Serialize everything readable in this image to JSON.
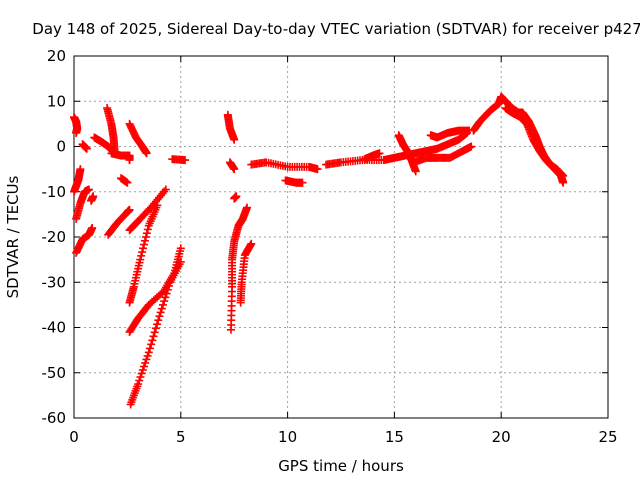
{
  "chart_data": {
    "type": "scatter",
    "title": "Day 148 of 2025, Sidereal Day-to-day VTEC variation (SDTVAR) for receiver p427",
    "xlabel": "GPS time / hours",
    "ylabel": "SDTVAR / TECUs",
    "xlim": [
      0,
      25
    ],
    "ylim": [
      -60,
      20
    ],
    "xticks": [
      "0",
      "5",
      "10",
      "15",
      "20",
      "25"
    ],
    "yticks": [
      "20",
      "10",
      "0",
      "-10",
      "-20",
      "-30",
      "-40",
      "-50",
      "-60"
    ],
    "grid": true,
    "marker": "+",
    "series": [
      {
        "name": "SDTVAR",
        "color": "#ff0000",
        "segments": [
          [
            [
              0.0,
              6.5
            ],
            [
              0.1,
              5.5
            ],
            [
              0.15,
              4.0
            ],
            [
              0.1,
              3.0
            ]
          ],
          [
            [
              0.0,
              -10.0
            ],
            [
              0.2,
              -7.5
            ],
            [
              0.3,
              -5.0
            ]
          ],
          [
            [
              0.1,
              -16.0
            ],
            [
              0.3,
              -12.5
            ],
            [
              0.5,
              -10.0
            ],
            [
              0.7,
              -9.5
            ]
          ],
          [
            [
              0.1,
              -23.5
            ],
            [
              0.4,
              -20.5
            ],
            [
              0.7,
              -19.5
            ],
            [
              0.85,
              -18.0
            ]
          ],
          [
            [
              0.4,
              0.5
            ],
            [
              0.6,
              -0.5
            ]
          ],
          [
            [
              0.8,
              -12.0
            ],
            [
              0.9,
              -11.0
            ]
          ],
          [
            [
              0.95,
              2.0
            ],
            [
              1.3,
              1.0
            ],
            [
              1.6,
              0.0
            ],
            [
              1.8,
              -1.0
            ]
          ],
          [
            [
              1.55,
              8.5
            ],
            [
              1.75,
              5.0
            ],
            [
              1.85,
              2.0
            ],
            [
              1.9,
              -1.0
            ]
          ],
          [
            [
              1.75,
              -1.5
            ],
            [
              2.2,
              -2.0
            ],
            [
              2.6,
              -2.0
            ],
            [
              2.6,
              -3.0
            ]
          ],
          [
            [
              1.6,
              -19.5
            ],
            [
              2.0,
              -17.0
            ],
            [
              2.5,
              -14.5
            ],
            [
              2.6,
              -14.0
            ]
          ],
          [
            [
              2.2,
              -7.0
            ],
            [
              2.5,
              -8.0
            ]
          ],
          [
            [
              2.6,
              5.0
            ],
            [
              2.9,
              2.0
            ],
            [
              3.2,
              0.0
            ],
            [
              3.4,
              -1.5
            ]
          ],
          [
            [
              2.6,
              -18.5
            ],
            [
              3.0,
              -16.5
            ],
            [
              3.6,
              -13.5
            ],
            [
              4.3,
              -9.5
            ]
          ],
          [
            [
              2.6,
              -34.5
            ],
            [
              2.8,
              -31.0
            ],
            [
              3.1,
              -25.0
            ],
            [
              3.5,
              -17.5
            ],
            [
              3.9,
              -13.0
            ]
          ],
          [
            [
              2.6,
              -41.0
            ],
            [
              3.0,
              -38.0
            ],
            [
              3.5,
              -35.0
            ],
            [
              4.2,
              -32.0
            ],
            [
              4.7,
              -28.0
            ],
            [
              5.0,
              -22.5
            ]
          ],
          [
            [
              2.65,
              -57.0
            ],
            [
              3.0,
              -52.5
            ],
            [
              3.5,
              -45.5
            ],
            [
              4.0,
              -37.5
            ],
            [
              4.5,
              -30.0
            ],
            [
              5.0,
              -25.5
            ]
          ],
          [
            [
              4.6,
              -2.8
            ],
            [
              5.2,
              -3.0
            ]
          ],
          [
            [
              7.2,
              7.0
            ],
            [
              7.3,
              4.0
            ],
            [
              7.5,
              1.5
            ]
          ],
          [
            [
              7.3,
              -3.5
            ],
            [
              7.5,
              -5.0
            ]
          ],
          [
            [
              7.35,
              -40.5
            ],
            [
              7.4,
              -31.0
            ],
            [
              7.4,
              -25.0
            ],
            [
              7.5,
              -21.0
            ],
            [
              7.7,
              -17.5
            ],
            [
              7.9,
              -16.0
            ],
            [
              8.1,
              -13.5
            ]
          ],
          [
            [
              7.5,
              -11.5
            ],
            [
              7.6,
              -11.0
            ]
          ],
          [
            [
              7.8,
              -34.5
            ],
            [
              7.85,
              -30.0
            ],
            [
              8.0,
              -24.0
            ],
            [
              8.3,
              -21.5
            ]
          ],
          [
            [
              8.3,
              -4.0
            ],
            [
              9.0,
              -3.5
            ],
            [
              10.0,
              -4.5
            ],
            [
              11.0,
              -4.5
            ],
            [
              11.4,
              -5.0
            ]
          ],
          [
            [
              9.9,
              -7.5
            ],
            [
              10.4,
              -8.0
            ],
            [
              10.7,
              -8.0
            ]
          ],
          [
            [
              11.8,
              -4.0
            ],
            [
              12.5,
              -3.5
            ],
            [
              13.5,
              -3.0
            ],
            [
              14.5,
              -3.0
            ],
            [
              15.0,
              -2.5
            ],
            [
              15.5,
              -2.0
            ],
            [
              16.0,
              -1.5
            ],
            [
              16.5,
              -1.0
            ],
            [
              17.0,
              -0.5
            ],
            [
              17.5,
              0.5
            ],
            [
              18.0,
              1.5
            ],
            [
              18.4,
              3.0
            ]
          ],
          [
            [
              13.6,
              -2.8
            ],
            [
              14.0,
              -2.0
            ],
            [
              14.3,
              -1.5
            ]
          ],
          [
            [
              15.2,
              2.5
            ],
            [
              15.4,
              0.5
            ],
            [
              15.6,
              -1.0
            ],
            [
              15.8,
              -3.0
            ],
            [
              16.0,
              -5.5
            ]
          ],
          [
            [
              15.9,
              -3.5
            ],
            [
              16.5,
              -2.5
            ],
            [
              17.0,
              -2.5
            ],
            [
              17.6,
              -2.5
            ],
            [
              18.2,
              -1.0
            ],
            [
              18.6,
              0.0
            ]
          ],
          [
            [
              16.7,
              2.5
            ],
            [
              17.0,
              2.0
            ],
            [
              17.5,
              3.0
            ],
            [
              18.0,
              3.5
            ],
            [
              18.5,
              3.5
            ]
          ],
          [
            [
              18.7,
              3.5
            ],
            [
              19.0,
              5.5
            ],
            [
              19.5,
              8.0
            ],
            [
              19.9,
              9.5
            ],
            [
              20.0,
              11.0
            ],
            [
              20.2,
              10.0
            ],
            [
              20.5,
              8.5
            ],
            [
              20.8,
              7.5
            ],
            [
              21.0,
              7.5
            ],
            [
              21.3,
              5.5
            ],
            [
              21.6,
              2.5
            ],
            [
              21.8,
              0.0
            ],
            [
              22.0,
              -2.0
            ],
            [
              22.3,
              -4.0
            ],
            [
              22.6,
              -5.0
            ],
            [
              22.9,
              -6.5
            ]
          ],
          [
            [
              20.2,
              8.5
            ],
            [
              20.5,
              7.5
            ],
            [
              20.9,
              6.5
            ],
            [
              21.2,
              5.0
            ],
            [
              21.5,
              1.5
            ],
            [
              21.8,
              -1.0
            ],
            [
              22.1,
              -3.0
            ],
            [
              22.4,
              -4.5
            ],
            [
              22.8,
              -6.5
            ],
            [
              22.9,
              -8.0
            ]
          ]
        ]
      }
    ]
  }
}
